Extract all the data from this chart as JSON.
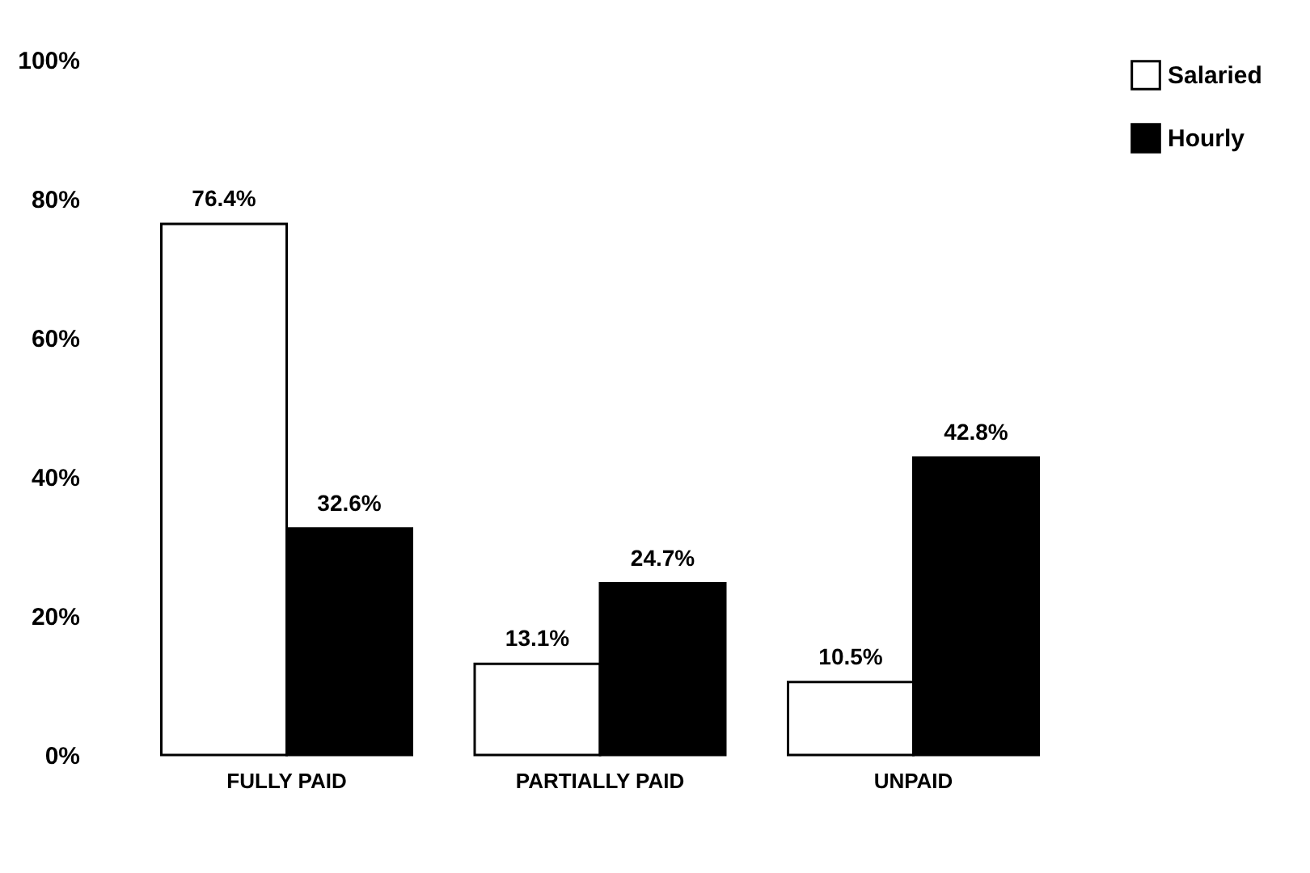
{
  "chart_data": {
    "type": "bar",
    "categories": [
      "FULLY PAID",
      "PARTIALLY PAID",
      "UNPAID"
    ],
    "series": [
      {
        "name": "Salaried",
        "color": "#ffffff",
        "values": [
          76.4,
          13.1,
          10.5
        ],
        "value_labels": [
          "76.4%",
          "13.1%",
          "10.5%"
        ]
      },
      {
        "name": "Hourly",
        "color": "#000000",
        "values": [
          32.6,
          24.7,
          42.8
        ],
        "value_labels": [
          "32.6%",
          "24.7%",
          "42.8%"
        ]
      }
    ],
    "ylim": [
      0,
      100
    ],
    "yticks": [
      {
        "value": 0,
        "label": "0%"
      },
      {
        "value": 20,
        "label": "20%"
      },
      {
        "value": 40,
        "label": "40%"
      },
      {
        "value": 60,
        "label": "60%"
      },
      {
        "value": 80,
        "label": "80%"
      },
      {
        "value": 100,
        "label": "100%"
      }
    ],
    "grid": false,
    "legend": "top right"
  }
}
